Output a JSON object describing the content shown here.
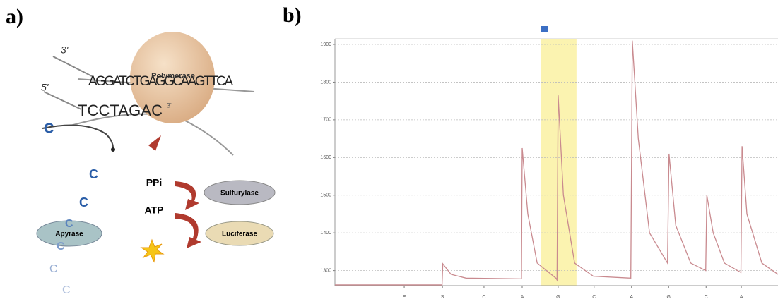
{
  "panels": {
    "a": "a)",
    "b": "b)"
  },
  "diagram": {
    "strand_top_end": "3'",
    "strand_bottom_end": "5'",
    "template": "AGGATCTGAGGCAAGTTCA",
    "primer": "TCCTAGAC",
    "primer_end": "3'",
    "polymerase": "Polymerase",
    "ppi": "PPi",
    "atp": "ATP",
    "sulfurylase": "Sulfurylase",
    "luciferase": "Luciferase",
    "apyrase": "Apyrase",
    "nucleotides": [
      "C",
      "C",
      "C",
      "C",
      "C",
      "C",
      "C"
    ]
  },
  "chart_data": {
    "type": "line",
    "xlim": [
      0,
      11.83
    ],
    "xticks": [
      {
        "value": 1.85,
        "label": "E"
      },
      {
        "value": 2.87,
        "label": "S"
      },
      {
        "value": 3.98,
        "label": "C"
      },
      {
        "value": 5.0,
        "label": "A"
      },
      {
        "value": 5.96,
        "label": "G"
      },
      {
        "value": 6.92,
        "label": "C"
      },
      {
        "value": 7.92,
        "label": "A"
      },
      {
        "value": 8.91,
        "label": "G"
      },
      {
        "value": 9.91,
        "label": "C"
      },
      {
        "value": 10.85,
        "label": "A"
      }
    ],
    "ylim": [
      1260,
      1915
    ],
    "yticks": [
      1300,
      1400,
      1500,
      1600,
      1700,
      1800,
      1900
    ],
    "grid": true,
    "highlight_range": [
      5.49,
      6.45
    ],
    "highlight_color": "#fbf3b0",
    "series": [
      {
        "color": "#c98a8f",
        "x": [
          0,
          2.86,
          2.88,
          3.1,
          3.5,
          4.98,
          5.0,
          5.15,
          5.4,
          5.9,
          5.93,
          5.96,
          6.1,
          6.4,
          6.9,
          7.9,
          7.94,
          8.1,
          8.4,
          8.88,
          8.92,
          9.1,
          9.5,
          9.9,
          9.93,
          10.1,
          10.4,
          10.84,
          10.87,
          11.0,
          11.4,
          11.83
        ],
        "values": [
          1262,
          1262,
          1318,
          1290,
          1280,
          1278,
          1625,
          1450,
          1320,
          1280,
          1275,
          1765,
          1500,
          1320,
          1285,
          1280,
          1910,
          1650,
          1400,
          1320,
          1610,
          1420,
          1320,
          1300,
          1500,
          1400,
          1320,
          1295,
          1630,
          1450,
          1320,
          1290
        ]
      }
    ]
  }
}
